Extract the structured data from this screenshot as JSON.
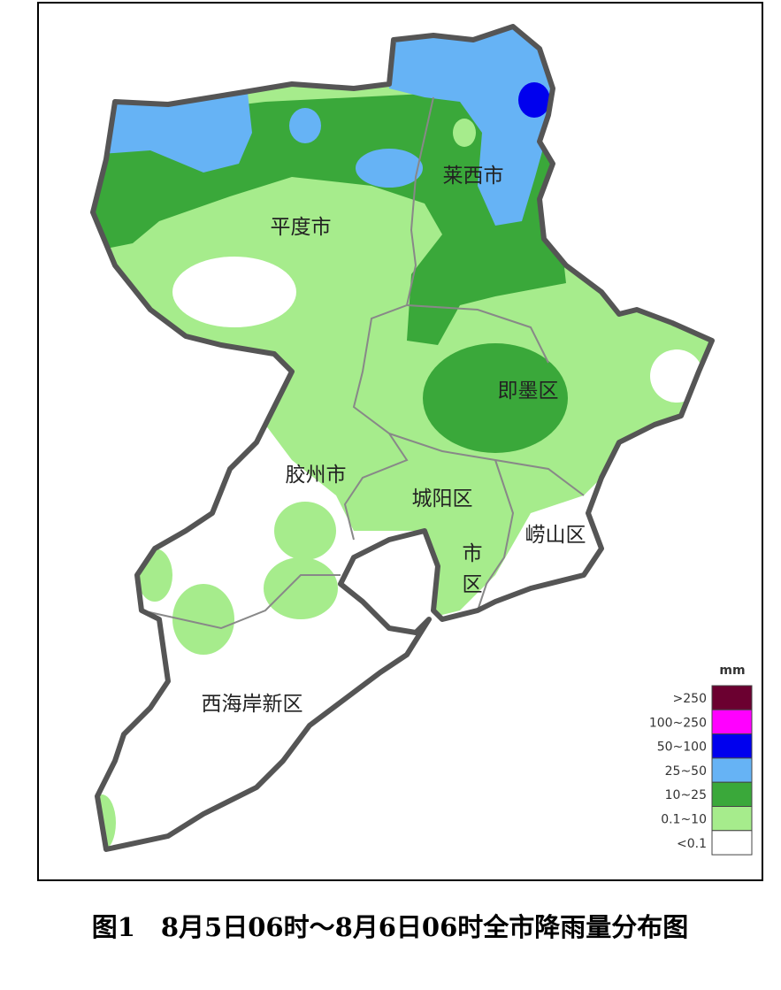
{
  "map": {
    "districts": [
      "平度市",
      "莱西市",
      "即墨区",
      "胶州市",
      "城阳区",
      "崂山区",
      "市区",
      "西海岸新区"
    ],
    "legend": {
      "unit": "mm",
      "items": [
        {
          "label": ">250",
          "color": "#6b0030"
        },
        {
          "label": "100~250",
          "color": "#ff00ff"
        },
        {
          "label": "50~100",
          "color": "#0000ee"
        },
        {
          "label": "25~50",
          "color": "#66b3f5"
        },
        {
          "label": "10~25",
          "color": "#3aa83a"
        },
        {
          "label": "0.1~10",
          "color": "#a6ec8c"
        },
        {
          "label": "<0.1",
          "color": "#ffffff"
        }
      ]
    },
    "caption": "图1　8月5日06时～8月6日06时全市降雨量分布图"
  }
}
